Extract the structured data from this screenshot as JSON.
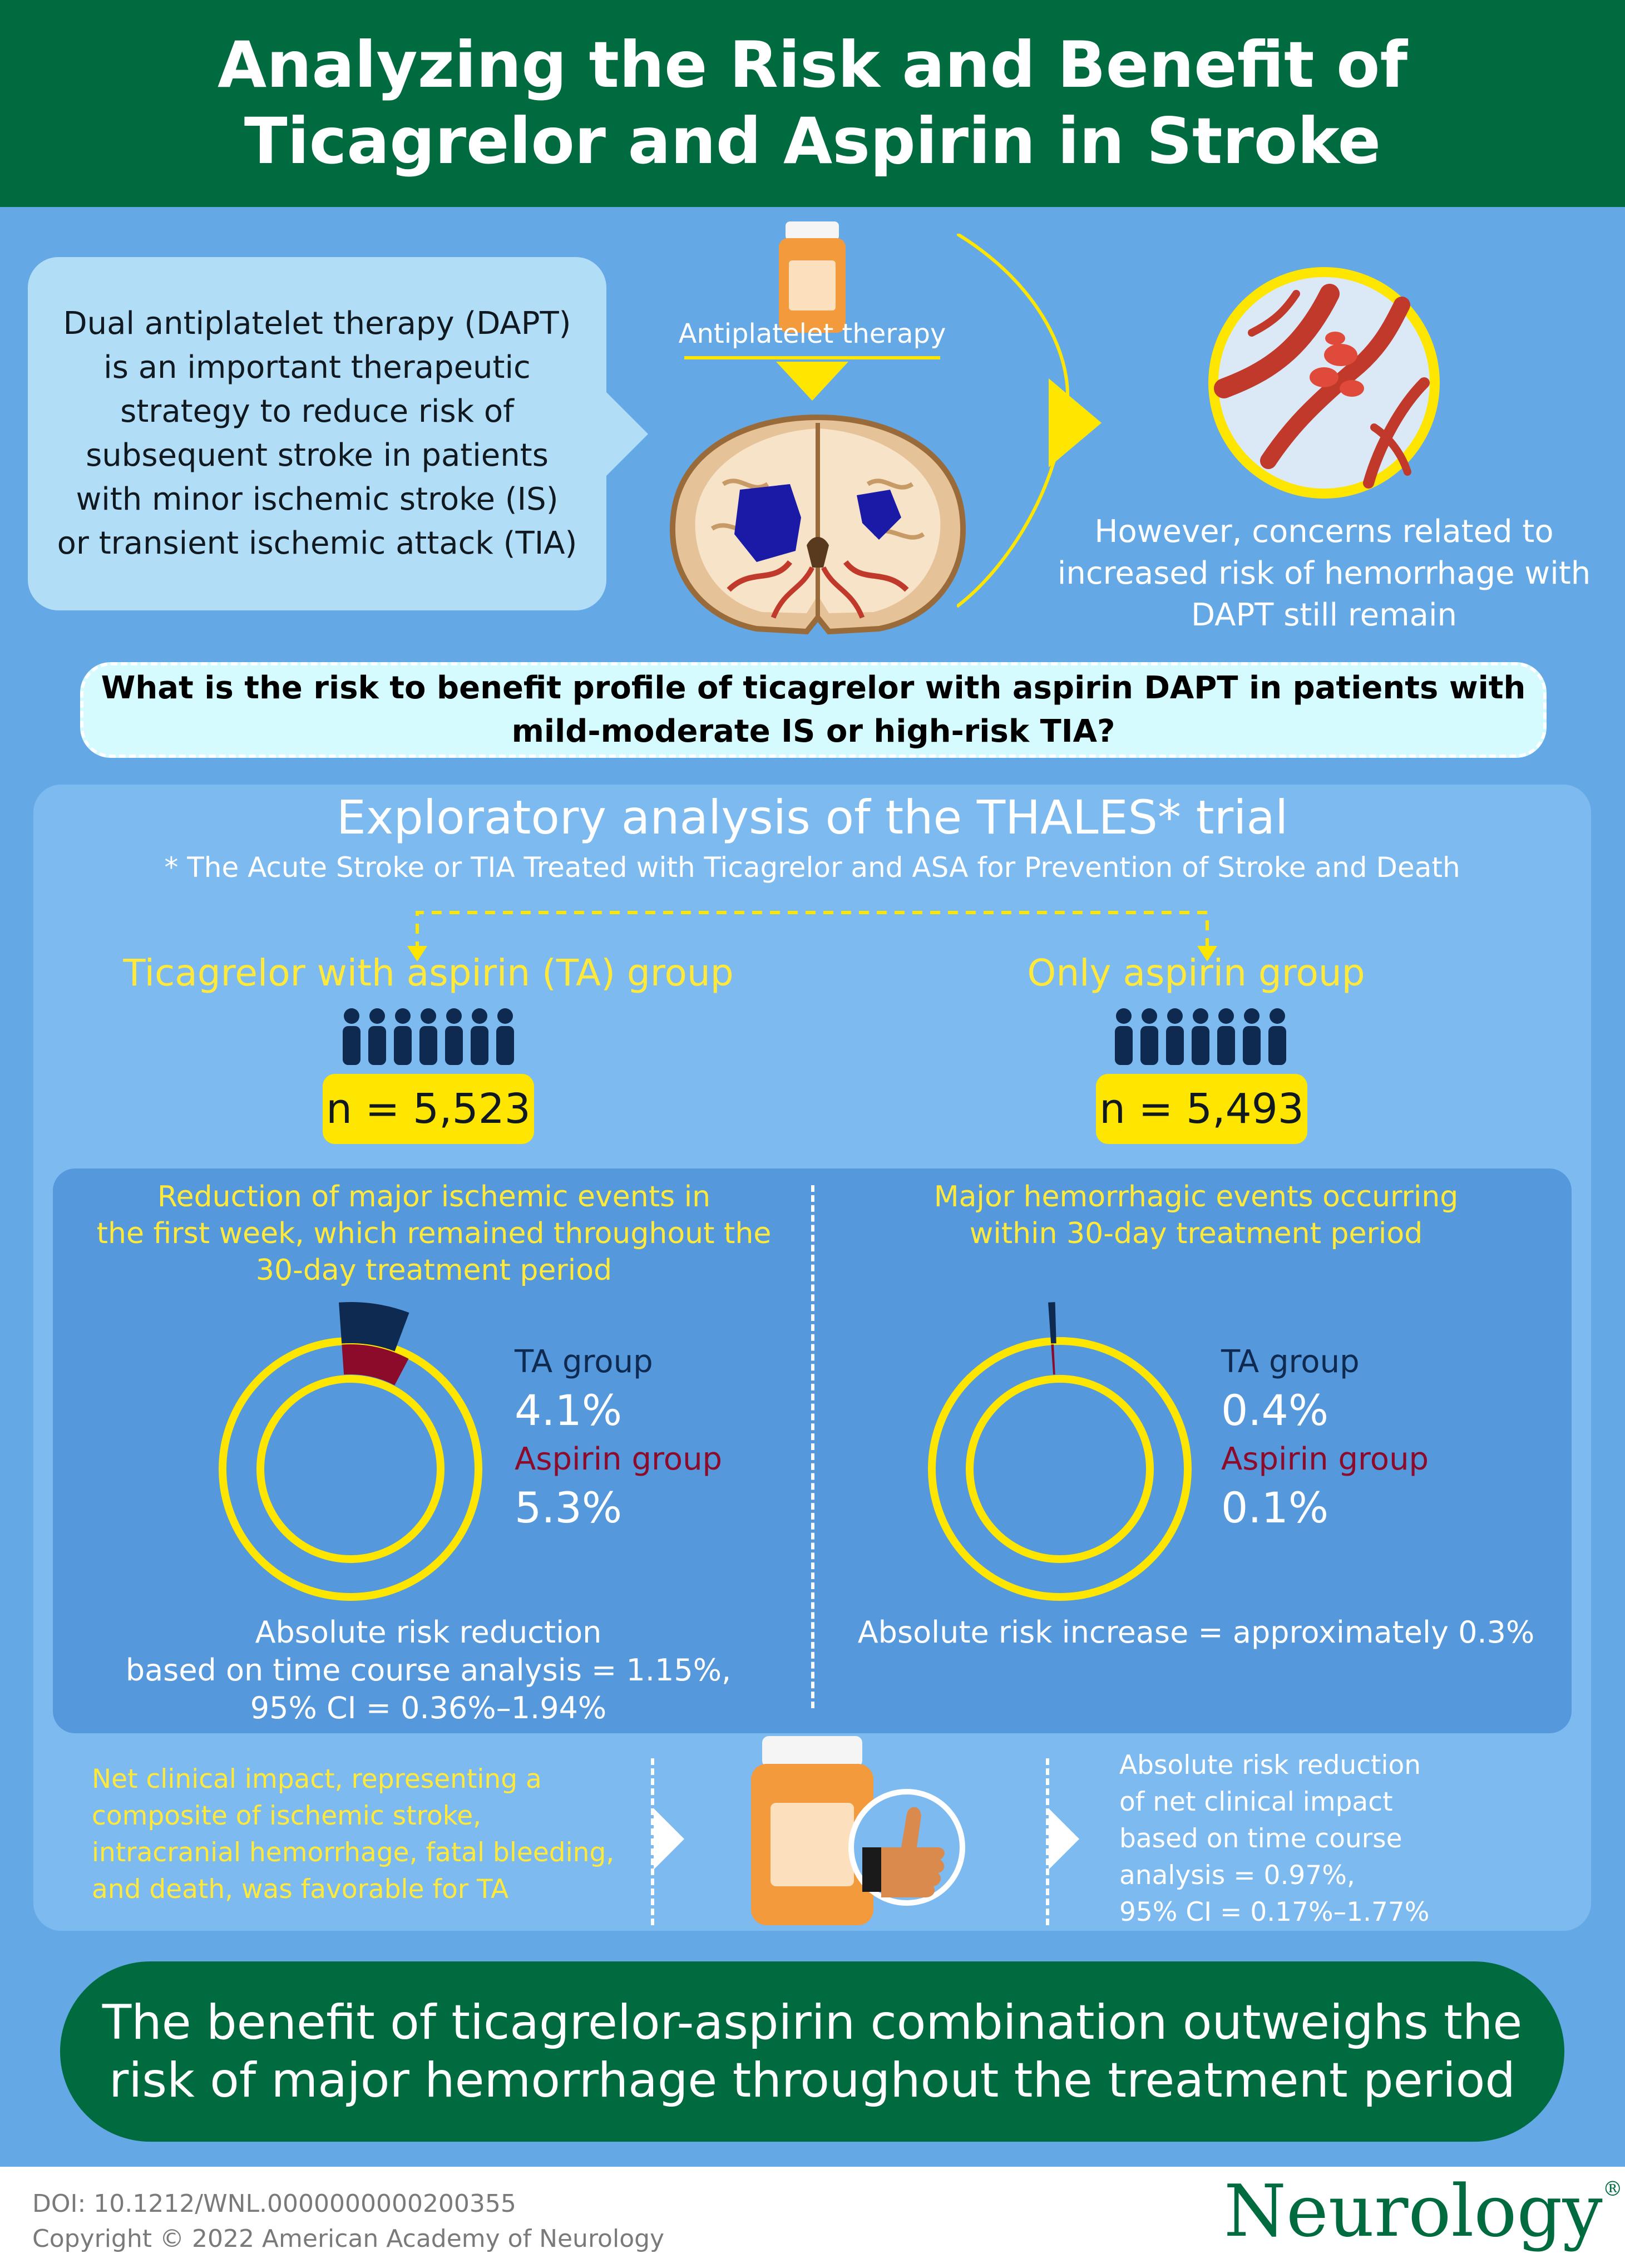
{
  "header": {
    "title_line1": "Analyzing the Risk and Benefit of",
    "title_line2": "Ticagrelor and Aspirin in Stroke"
  },
  "intro": {
    "dapt_lines": [
      "Dual antiplatelet therapy (DAPT)",
      "is an important therapeutic",
      "strategy to reduce risk of",
      "subsequent stroke in patients",
      "with minor ischemic stroke (IS)",
      "or transient ischemic attack (TIA)"
    ],
    "antiplatelet_label": "Antiplatelet therapy",
    "concern_lines": [
      "However, concerns related to",
      "increased risk of hemorrhage with",
      "DAPT still remain"
    ]
  },
  "question": {
    "line1": "What is the risk to benefit profile of ticagrelor with aspirin DAPT in patients with",
    "line2": "mild-moderate IS or high-risk TIA?"
  },
  "analysis": {
    "title": "Exploratory analysis of the THALES* trial",
    "footnote": "* The Acute Stroke or TIA Treated with Ticagrelor and ASA for Prevention of Stroke and Death",
    "groups": [
      {
        "name": "Ticagrelor with aspirin (TA) group",
        "n": "n = 5,523"
      },
      {
        "name": "Only aspirin group",
        "n": "n = 5,493"
      }
    ]
  },
  "colors": {
    "ta": "#0e2a50",
    "aspirin": "#8c0a2a",
    "ring": "#ffe600"
  },
  "outcomes": [
    {
      "title_lines": [
        "Reduction of major ischemic events in",
        "the first week, which remained throughout the",
        "30-day treatment period"
      ],
      "ta_label": "TA group",
      "ta_value": "4.1%",
      "ta_pct": 4.1,
      "aspirin_label": "Aspirin group",
      "aspirin_value": "5.3%",
      "aspirin_pct": 5.3,
      "summary_lines": [
        "Absolute risk reduction",
        "based on time course analysis = 1.15%,",
        "95% CI = 0.36%–1.94%"
      ]
    },
    {
      "title_lines": [
        "Major hemorrhagic events occurring",
        "within 30-day treatment period"
      ],
      "ta_label": "TA group",
      "ta_value": "0.4%",
      "ta_pct": 0.4,
      "aspirin_label": "Aspirin group",
      "aspirin_value": "0.1%",
      "aspirin_pct": 0.1,
      "summary_lines": [
        "Absolute risk increase = approximately 0.3%"
      ]
    }
  ],
  "net": {
    "left_lines": [
      "Net clinical impact, representing a",
      "composite of ischemic stroke,",
      "intracranial hemorrhage, fatal bleeding,",
      "and death, was favorable for TA"
    ],
    "right_lines": [
      "Absolute risk reduction",
      "of net clinical impact",
      "based on time course",
      "analysis = 0.97%,",
      "95% CI = 0.17%–1.77%"
    ]
  },
  "conclusion": {
    "line1": "The benefit of ticagrelor-aspirin combination outweighs the",
    "line2": "risk of major hemorrhage throughout the treatment period"
  },
  "footer": {
    "doi": "DOI: 10.1212/WNL.0000000000200355",
    "copyright": "Copyright © 2022 American Academy of Neurology",
    "logo": "Neurology",
    "logo_mark": "®"
  }
}
